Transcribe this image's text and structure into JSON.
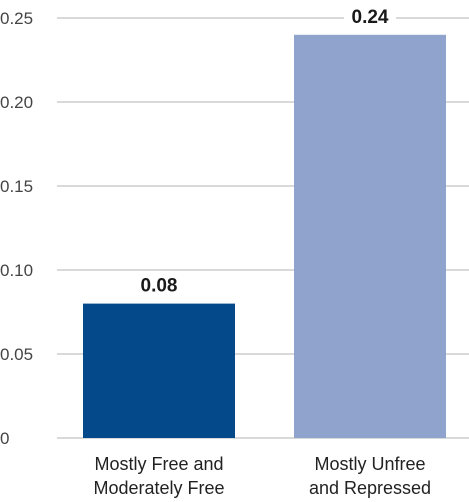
{
  "chart_data": {
    "type": "bar",
    "title": "",
    "xlabel": "",
    "ylabel": "",
    "categories": [
      [
        "Mostly Free and",
        "Moderately Free"
      ],
      [
        "Mostly Unfree",
        "and Repressed"
      ]
    ],
    "values": [
      0.08,
      0.24
    ],
    "data_labels": [
      "0.08",
      "0.24"
    ],
    "colors": [
      "#044a8a",
      "#8fa3cc"
    ],
    "ylim": [
      0,
      0.25
    ],
    "yticks": [
      0,
      0.05,
      0.1,
      0.15,
      0.2,
      0.25
    ],
    "ytick_labels": [
      "0",
      "0.05",
      "0.10",
      "0.15",
      "0.20",
      "0.25"
    ],
    "grid": true,
    "legend": "none"
  }
}
